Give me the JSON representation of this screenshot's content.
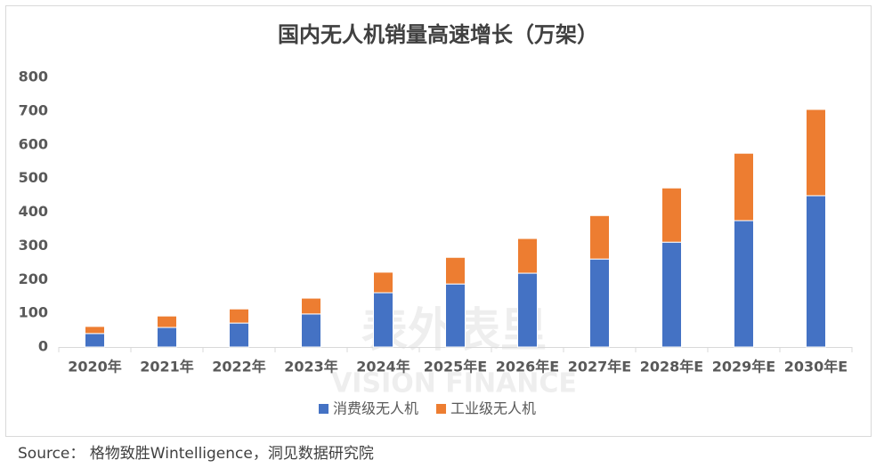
{
  "chart_data": {
    "type": "stacked_bar",
    "title": "国内无人机销量高速增长（万架）",
    "categories": [
      "2020年",
      "2021年",
      "2022年",
      "2023年",
      "2024年",
      "2025年E",
      "2026年E",
      "2027年E",
      "2028年E",
      "2029年E",
      "2030年E"
    ],
    "series": [
      {
        "name": "消费级无人机",
        "color": "#4472c4",
        "values": [
          40,
          58,
          71,
          98,
          161,
          187,
          219,
          261,
          311,
          375,
          449
        ]
      },
      {
        "name": "工业级无人机",
        "color": "#ed7d31",
        "values": [
          21,
          34,
          42,
          47,
          61,
          79,
          103,
          129,
          161,
          200,
          256
        ]
      }
    ],
    "ylim": [
      0,
      800
    ],
    "yticks": [
      0,
      100,
      200,
      300,
      400,
      500,
      600,
      700,
      800
    ],
    "grid": false,
    "legend": "bottom",
    "watermark": [
      "表外表里",
      "VISION FINANCE"
    ],
    "source": "Source：  格物致胜Wintelligence，洞见数据研究院"
  }
}
